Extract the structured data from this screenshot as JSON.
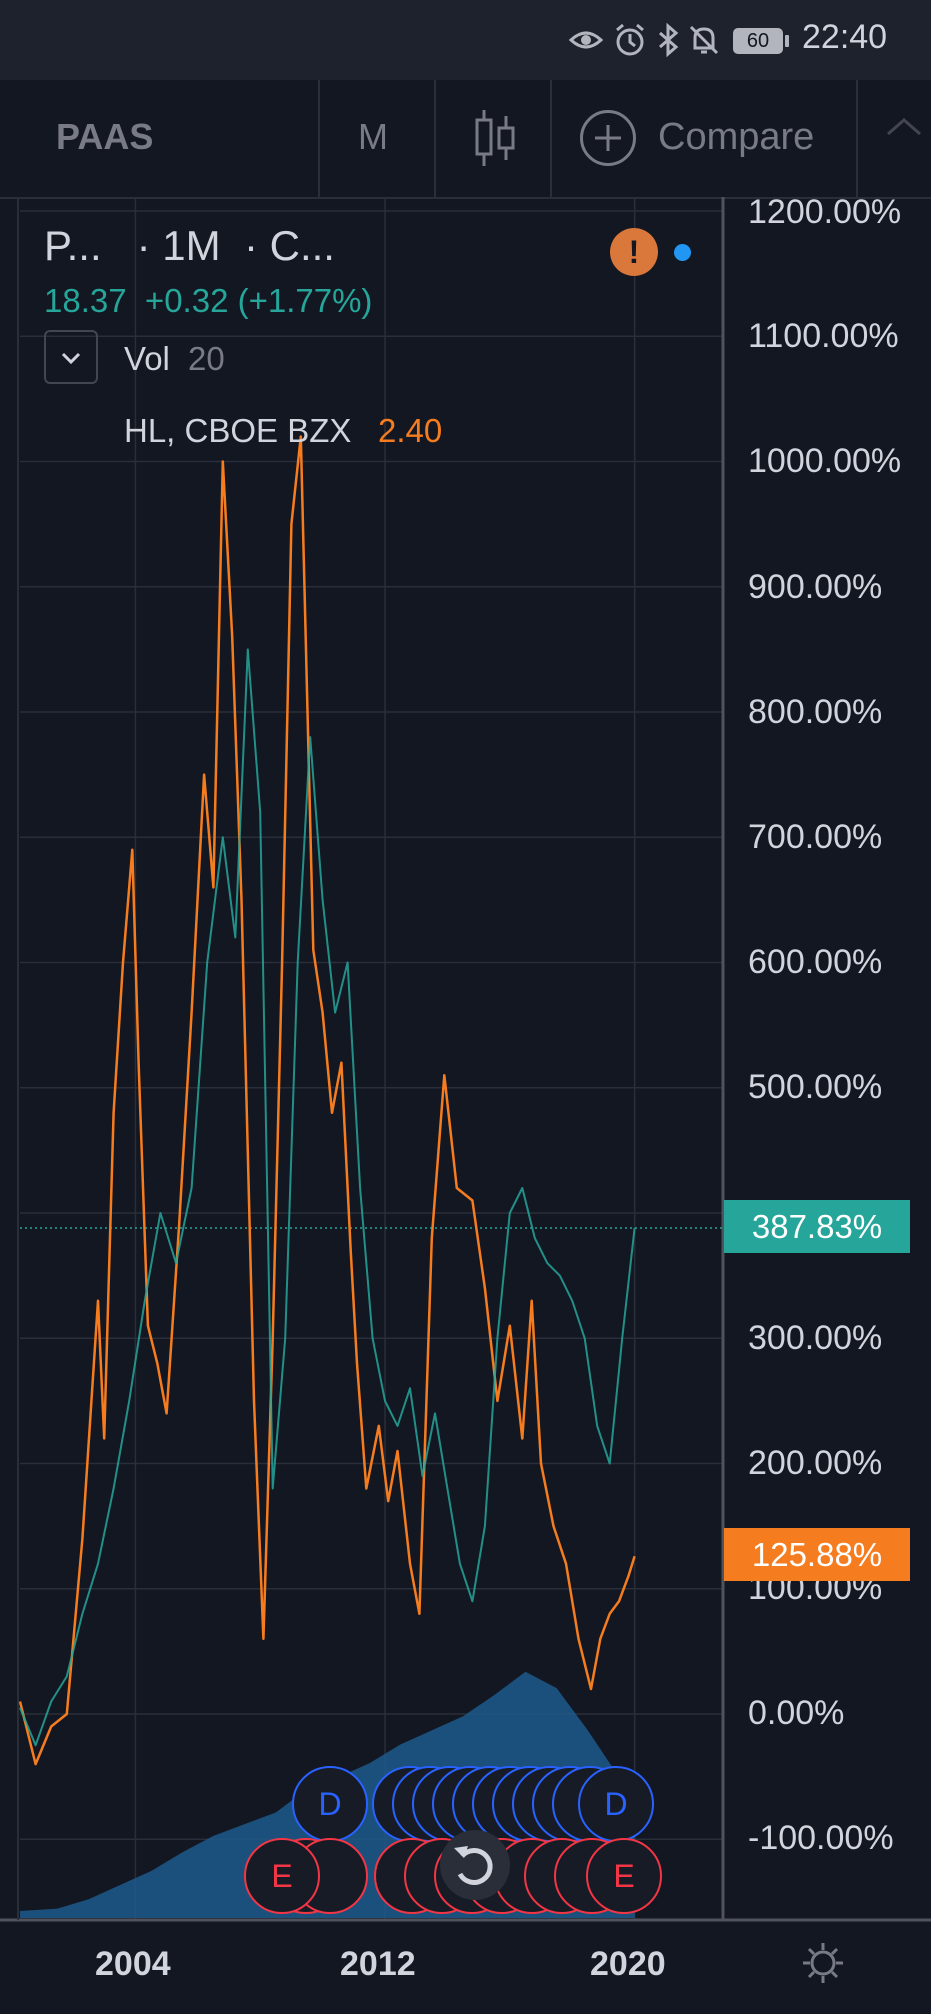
{
  "status_bar": {
    "battery": "60",
    "time": "22:40",
    "icons": [
      "eye-icon",
      "alarm-icon",
      "bluetooth-icon",
      "notifications-off-icon",
      "battery-icon"
    ]
  },
  "toolbar": {
    "symbol": "PAAS",
    "interval": "M",
    "chart_type_icon": "candlestick-icon",
    "compare_label": "Compare",
    "collapse_icon": "chevron-up-icon"
  },
  "legend": {
    "title": "P...   · 1M  · C...",
    "price": "18.37  +0.32 (+1.77%)",
    "vol_label": "Vol",
    "vol_value": "20",
    "compare_symbol": "HL, CBOE BZX",
    "compare_value": "2.40",
    "warning": "!"
  },
  "price_labels": {
    "paas": "387.83%",
    "hl": "125.88%"
  },
  "event_markers": {
    "dividend": "D",
    "earnings": "E"
  },
  "colors": {
    "background": "#131722",
    "paas_series": "#26a69a",
    "hl_series": "#f57c1f",
    "volume": "#1e5a8c",
    "dividend_marker": "#2962ff",
    "earnings_marker": "#f23645"
  },
  "chart_data": {
    "type": "line",
    "title": "",
    "xlabel": "",
    "ylabel": "",
    "x_ticks": [
      "2004",
      "2012",
      "2020"
    ],
    "y_ticks": [
      "1200.00%",
      "1100.00%",
      "1000.00%",
      "900.00%",
      "800.00%",
      "700.00%",
      "600.00%",
      "500.00%",
      "300.00%",
      "200.00%",
      "100.00%",
      "0.00%",
      "-100.00%"
    ],
    "xlim": [
      2000.3,
      2022.8
    ],
    "ylim": [
      -165,
      1230
    ],
    "grid": true,
    "series": [
      {
        "name": "HL, CBOE BZX",
        "x": [
          2000.3,
          2000.8,
          2001.3,
          2001.8,
          2002.3,
          2002.8,
          2003.0,
          2003.3,
          2003.6,
          2003.9,
          2004.1,
          2004.4,
          2004.7,
          2005.0,
          2005.4,
          2005.8,
          2006.2,
          2006.5,
          2006.8,
          2007.1,
          2007.4,
          2007.8,
          2008.1,
          2008.4,
          2008.7,
          2009.0,
          2009.3,
          2009.7,
          2010.0,
          2010.3,
          2010.6,
          2010.9,
          2011.1,
          2011.4,
          2011.8,
          2012.1,
          2012.4,
          2012.8,
          2013.1,
          2013.5,
          2013.9,
          2014.3,
          2014.8,
          2015.2,
          2015.6,
          2016.0,
          2016.4,
          2016.7,
          2017.0,
          2017.4,
          2017.8,
          2018.2,
          2018.6,
          2018.9,
          2019.2,
          2019.5,
          2019.8,
          2020.0
        ],
        "values": [
          10,
          -40,
          -10,
          0,
          140,
          330,
          220,
          480,
          600,
          690,
          520,
          310,
          280,
          240,
          390,
          560,
          750,
          660,
          1000,
          860,
          650,
          250,
          60,
          300,
          600,
          950,
          1020,
          610,
          560,
          480,
          520,
          370,
          280,
          180,
          230,
          170,
          210,
          120,
          80,
          380,
          510,
          420,
          410,
          340,
          250,
          310,
          220,
          330,
          200,
          150,
          120,
          60,
          20,
          60,
          80,
          90,
          110,
          126
        ]
      },
      {
        "name": "PAAS",
        "x": [
          2000.3,
          2000.8,
          2001.3,
          2001.8,
          2002.3,
          2002.8,
          2003.3,
          2003.8,
          2004.3,
          2004.8,
          2005.3,
          2005.8,
          2006.3,
          2006.8,
          2007.2,
          2007.6,
          2008.0,
          2008.4,
          2008.8,
          2009.2,
          2009.6,
          2010.0,
          2010.4,
          2010.8,
          2011.2,
          2011.6,
          2012.0,
          2012.4,
          2012.8,
          2013.2,
          2013.6,
          2014.0,
          2014.4,
          2014.8,
          2015.2,
          2015.6,
          2016.0,
          2016.4,
          2016.8,
          2017.2,
          2017.6,
          2018.0,
          2018.4,
          2018.8,
          2019.2,
          2019.6,
          2020.0
        ],
        "values": [
          5,
          -25,
          10,
          30,
          80,
          120,
          180,
          250,
          330,
          400,
          360,
          420,
          600,
          700,
          620,
          850,
          720,
          180,
          300,
          600,
          780,
          650,
          560,
          600,
          420,
          300,
          250,
          230,
          260,
          190,
          240,
          180,
          120,
          90,
          150,
          300,
          400,
          420,
          380,
          360,
          350,
          330,
          300,
          230,
          200,
          300,
          388
        ]
      }
    ],
    "volume": {
      "x": [
        2000.3,
        2001.5,
        2002.5,
        2003.5,
        2004.5,
        2005.5,
        2006.5,
        2007.5,
        2008.5,
        2009.5,
        2010.5,
        2011.5,
        2012.5,
        2013.5,
        2014.5,
        2015.5,
        2016.5,
        2017.5,
        2018.5,
        2019.5,
        2020.0
      ],
      "values": [
        3,
        4,
        8,
        14,
        20,
        28,
        35,
        40,
        45,
        55,
        60,
        66,
        74,
        80,
        86,
        95,
        105,
        98,
        80,
        60,
        55
      ]
    }
  }
}
